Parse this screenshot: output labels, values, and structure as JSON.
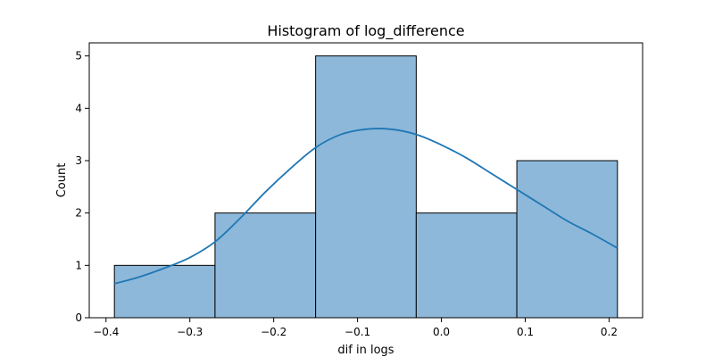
{
  "chart_data": {
    "type": "bar",
    "title": "Histogram of log_difference",
    "xlabel": "dif in logs",
    "ylabel": "Count",
    "xlim": [
      -0.42,
      0.24
    ],
    "ylim": [
      0,
      5.25
    ],
    "x_ticks": [
      -0.4,
      -0.3,
      -0.2,
      -0.1,
      0.0,
      0.1,
      0.2
    ],
    "x_tick_labels": [
      "−0.4",
      "−0.3",
      "−0.2",
      "−0.1",
      "0.0",
      "0.1",
      "0.2"
    ],
    "y_ticks": [
      0,
      1,
      2,
      3,
      4,
      5
    ],
    "y_tick_labels": [
      "0",
      "1",
      "2",
      "3",
      "4",
      "5"
    ],
    "bins": [
      {
        "x0": -0.39,
        "x1": -0.27,
        "count": 1
      },
      {
        "x0": -0.27,
        "x1": -0.15,
        "count": 2
      },
      {
        "x0": -0.15,
        "x1": -0.03,
        "count": 5
      },
      {
        "x0": -0.03,
        "x1": 0.09,
        "count": 2
      },
      {
        "x0": 0.09,
        "x1": 0.21,
        "count": 3
      }
    ],
    "kde": {
      "x": [
        -0.39,
        -0.36,
        -0.33,
        -0.3,
        -0.27,
        -0.24,
        -0.21,
        -0.18,
        -0.15,
        -0.12,
        -0.09,
        -0.06,
        -0.03,
        0.0,
        0.03,
        0.06,
        0.09,
        0.12,
        0.15,
        0.18,
        0.21
      ],
      "y": [
        0.65,
        0.78,
        0.95,
        1.15,
        1.45,
        1.9,
        2.4,
        2.85,
        3.25,
        3.5,
        3.6,
        3.6,
        3.5,
        3.3,
        3.05,
        2.75,
        2.45,
        2.15,
        1.85,
        1.6,
        1.33
      ]
    },
    "grid": false,
    "colors": {
      "bar_fill": "#8db8da",
      "bar_edge": "#000000",
      "kde_line": "#1f77b4"
    }
  }
}
